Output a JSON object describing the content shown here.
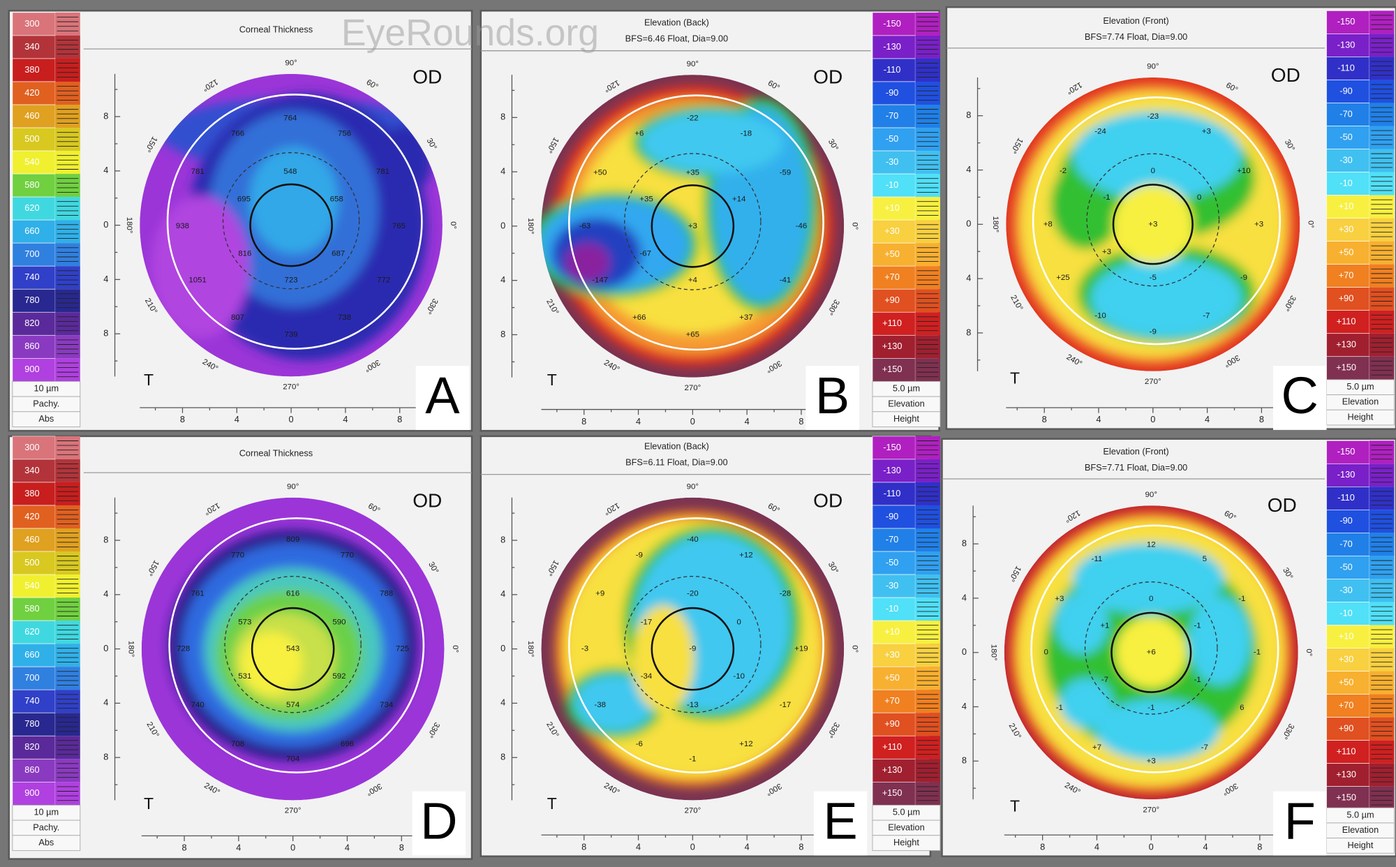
{
  "watermark": "EyeRounds.org",
  "degrees": [
    "90°",
    "60°",
    "30°",
    "0°",
    "330°",
    "300°",
    "270°",
    "240°",
    "210°",
    "180°",
    "150°",
    "120°"
  ],
  "axis_labels": [
    "8",
    "4",
    "0",
    "4",
    "8"
  ],
  "panels": [
    {
      "letter": "A",
      "title": "Corneal Thickness",
      "eye": "OD",
      "side": "T",
      "scale": {
        "labels": [
          "300",
          "340",
          "380",
          "420",
          "460",
          "500",
          "540",
          "580",
          "620",
          "660",
          "700",
          "740",
          "780",
          "820",
          "860",
          "900"
        ],
        "colors": [
          "#d9747a",
          "#b2343a",
          "#c81e1e",
          "#e06020",
          "#e0a020",
          "#d8c820",
          "#f0f030",
          "#70d040",
          "#40d8e0",
          "#30b0e8",
          "#3080e0",
          "#3040c8",
          "#282890",
          "#5a2a9a",
          "#8a3ac0",
          "#b040e0"
        ],
        "footer": [
          "10 µm",
          "Pachy.",
          "Abs"
        ]
      },
      "map_values": [
        "764",
        "766",
        "756",
        "548",
        "781",
        "781",
        "695",
        "658",
        "938",
        "765",
        "816",
        "687",
        "1051",
        "723",
        "772",
        "807",
        "738",
        "739"
      ]
    },
    {
      "letter": "B",
      "title": "Elevation (Back)",
      "subtitle": "BFS=6.46 Float, Dia=9.00",
      "eye": "OD",
      "side": "T",
      "scale": {
        "labels": [
          "-150",
          "-130",
          "-110",
          "-90",
          "-70",
          "-50",
          "-30",
          "-10",
          "+10",
          "+30",
          "+50",
          "+70",
          "+90",
          "+110",
          "+130",
          "+150"
        ],
        "colors": [
          "#b020c0",
          "#7a20c8",
          "#3030c8",
          "#2050e0",
          "#2080e8",
          "#30a0f0",
          "#40c0f0",
          "#50e0f8",
          "#f8f040",
          "#f8d040",
          "#f8b030",
          "#f08020",
          "#e05020",
          "#d02020",
          "#a02030",
          "#803050"
        ],
        "footer": [
          "5.0 µm",
          "Elevation",
          "Height"
        ]
      },
      "map_values": [
        "-22",
        "+6",
        "-18",
        "+50",
        "+35",
        "-59",
        "+35",
        "+14",
        "-63",
        "+3",
        "-46",
        "-67",
        "-147",
        "+4",
        "-41",
        "+66",
        "+37",
        "+65"
      ]
    },
    {
      "letter": "C",
      "title": "Elevation (Front)",
      "subtitle": "BFS=7.74 Float, Dia=9.00",
      "eye": "OD",
      "side": "T",
      "scale": {
        "labels": [
          "-150",
          "-130",
          "-110",
          "-90",
          "-70",
          "-50",
          "-30",
          "-10",
          "+10",
          "+30",
          "+50",
          "+70",
          "+90",
          "+110",
          "+130",
          "+150"
        ],
        "colors": [
          "#b020c0",
          "#7a20c8",
          "#3030c8",
          "#2050e0",
          "#2080e8",
          "#30a0f0",
          "#40c0f0",
          "#50e0f8",
          "#f8f040",
          "#f8d040",
          "#f8b030",
          "#f08020",
          "#e05020",
          "#d02020",
          "#a02030",
          "#803050"
        ],
        "footer": [
          "5.0 µm",
          "Elevation",
          "Height"
        ]
      },
      "map_values": [
        "-23",
        "-24",
        "+3",
        "-2",
        "0",
        "+10",
        "-1",
        "0",
        "+8",
        "+3",
        "+3",
        "+3",
        "-5",
        "+25",
        "-9",
        "-10",
        "-7",
        "-9"
      ]
    },
    {
      "letter": "D",
      "title": "Corneal Thickness",
      "eye": "OD",
      "side": "T",
      "scale": {
        "labels": [
          "300",
          "340",
          "380",
          "420",
          "460",
          "500",
          "540",
          "580",
          "620",
          "660",
          "700",
          "740",
          "780",
          "820",
          "860",
          "900"
        ],
        "colors": [
          "#d9747a",
          "#b2343a",
          "#c81e1e",
          "#e06020",
          "#e0a020",
          "#d8c820",
          "#f0f030",
          "#70d040",
          "#40d8e0",
          "#30b0e8",
          "#3080e0",
          "#3040c8",
          "#282890",
          "#5a2a9a",
          "#8a3ac0",
          "#b040e0"
        ],
        "footer": [
          "10 µm",
          "Pachy.",
          "Abs"
        ]
      },
      "map_values": [
        "809",
        "770",
        "770",
        "761",
        "616",
        "788",
        "573",
        "590",
        "728",
        "543",
        "725",
        "531",
        "592",
        "740",
        "574",
        "734",
        "708",
        "696",
        "704"
      ]
    },
    {
      "letter": "E",
      "title": "Elevation (Back)",
      "subtitle": "BFS=6.11 Float, Dia=9.00",
      "eye": "OD",
      "side": "T",
      "scale": {
        "labels": [
          "-150",
          "-130",
          "-110",
          "-90",
          "-70",
          "-50",
          "-30",
          "-10",
          "+10",
          "+30",
          "+50",
          "+70",
          "+90",
          "+110",
          "+130",
          "+150"
        ],
        "colors": [
          "#b020c0",
          "#7a20c8",
          "#3030c8",
          "#2050e0",
          "#2080e8",
          "#30a0f0",
          "#40c0f0",
          "#50e0f8",
          "#f8f040",
          "#f8d040",
          "#f8b030",
          "#f08020",
          "#e05020",
          "#d02020",
          "#a02030",
          "#803050"
        ],
        "footer": [
          "5.0 µm",
          "Elevation",
          "Height"
        ]
      },
      "map_values": [
        "-40",
        "-9",
        "+12",
        "+9",
        "-20",
        "-28",
        "-17",
        "0",
        "-3",
        "-9",
        "+19",
        "-34",
        "-10",
        "-38",
        "-13",
        "-17",
        "-6",
        "+12",
        "-1"
      ]
    },
    {
      "letter": "F",
      "title": "Elevation (Front)",
      "subtitle": "BFS=7.71 Float, Dia=9.00",
      "eye": "OD",
      "side": "T",
      "scale": {
        "labels": [
          "-150",
          "-130",
          "-110",
          "-90",
          "-70",
          "-50",
          "-30",
          "-10",
          "+10",
          "+30",
          "+50",
          "+70",
          "+90",
          "+110",
          "+130",
          "+150"
        ],
        "colors": [
          "#b020c0",
          "#7a20c8",
          "#3030c8",
          "#2050e0",
          "#2080e8",
          "#30a0f0",
          "#40c0f0",
          "#50e0f8",
          "#f8f040",
          "#f8d040",
          "#f8b030",
          "#f08020",
          "#e05020",
          "#d02020",
          "#a02030",
          "#803050"
        ],
        "footer": [
          "5.0 µm",
          "Elevation",
          "Height"
        ]
      },
      "map_values": [
        "12",
        "-11",
        "5",
        "+3",
        "0",
        "-1",
        "+1",
        "-1",
        "0",
        "+6",
        "-1",
        "-7",
        "-1",
        "-1",
        "-1",
        "6",
        "+7",
        "+3",
        "-7"
      ]
    }
  ]
}
